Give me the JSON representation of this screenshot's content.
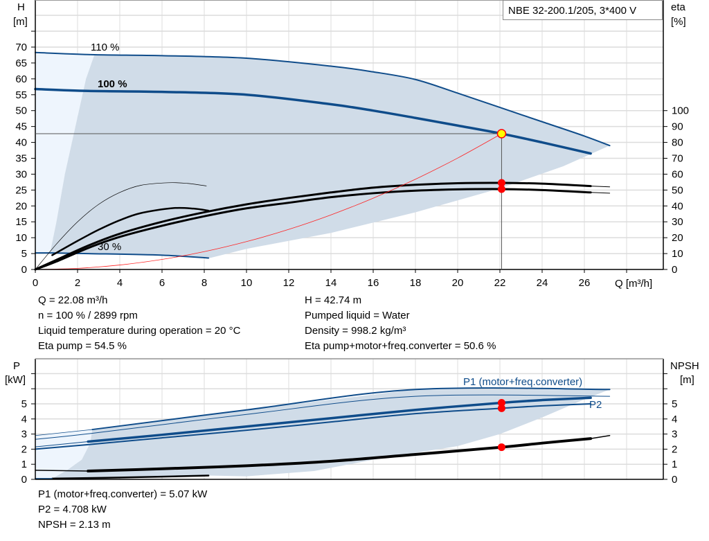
{
  "chart_data": [
    {
      "type": "line",
      "title": "NBE 32-200.1/205, 3*400 V",
      "xlabel": "Q [m³/h]",
      "ylabel": "H\n[m]",
      "y2label": "eta\n[%]",
      "xlim": [
        0,
        29.7
      ],
      "ylim": [
        0,
        85
      ],
      "y2lim": [
        0,
        170
      ],
      "xticks": [
        0,
        2,
        4,
        6,
        8,
        10,
        12,
        14,
        16,
        18,
        20,
        22,
        24,
        26
      ],
      "yticks": [
        0,
        5,
        10,
        15,
        20,
        25,
        30,
        35,
        40,
        45,
        50,
        55,
        60,
        65,
        70
      ],
      "y2ticks": [
        0,
        10,
        20,
        30,
        40,
        50,
        60,
        70,
        80,
        90,
        100
      ],
      "grid": true,
      "regions": [
        {
          "fill": "#eef5fd",
          "axis": "H",
          "points": [
            [
              0,
              68.3
            ],
            [
              2.8,
              67.6
            ],
            [
              2.4,
              60
            ],
            [
              1.9,
              45
            ],
            [
              1.4,
              30
            ],
            [
              1.0,
              15
            ],
            [
              0.7,
              5.2
            ],
            [
              0,
              5.2
            ]
          ]
        },
        {
          "fill": "#d0dce8",
          "axis": "H",
          "points": [
            [
              2.8,
              67.6
            ],
            [
              6,
              67.3
            ],
            [
              10,
              66.5
            ],
            [
              14,
              64
            ],
            [
              16,
              62.2
            ],
            [
              18,
              59.8
            ],
            [
              20,
              55.5
            ],
            [
              22,
              51
            ],
            [
              24,
              46.5
            ],
            [
              26,
              42
            ],
            [
              27.2,
              39
            ],
            [
              25,
              32.5
            ],
            [
              22,
              25.5
            ],
            [
              18,
              18
            ],
            [
              14,
              11.5
            ],
            [
              10,
              6.5
            ],
            [
              8.2,
              3.5
            ],
            [
              6,
              4.5
            ],
            [
              2.5,
              5
            ],
            [
              0.7,
              5.2
            ],
            [
              1.0,
              15
            ],
            [
              1.4,
              30
            ],
            [
              1.9,
              45
            ],
            [
              2.4,
              60
            ]
          ]
        }
      ],
      "series": [
        {
          "name": "110 %",
          "axis": "H",
          "color": "#0f4c8a",
          "width": 2,
          "points": [
            [
              0,
              68.3
            ],
            [
              2.8,
              67.6
            ],
            [
              6,
              67.3
            ],
            [
              10,
              66.5
            ],
            [
              14,
              64
            ],
            [
              16,
              62.2
            ],
            [
              18,
              59.8
            ],
            [
              20,
              55.5
            ],
            [
              22,
              51
            ],
            [
              24,
              46.5
            ],
            [
              26,
              42
            ],
            [
              27.2,
              39
            ]
          ]
        },
        {
          "name": "100 %",
          "axis": "H",
          "color": "#0f4c8a",
          "width": 3.5,
          "points": [
            [
              0,
              56.8
            ],
            [
              2.5,
              56.2
            ],
            [
              6,
              55.9
            ],
            [
              10,
              55
            ],
            [
              14,
              52
            ],
            [
              16,
              50
            ],
            [
              18,
              47.7
            ],
            [
              20,
              45.3
            ],
            [
              22.08,
              42.74
            ],
            [
              24,
              40
            ],
            [
              26.3,
              36.5
            ]
          ]
        },
        {
          "name": "30 %",
          "axis": "H",
          "color": "#0f4c8a",
          "width": 2,
          "points": [
            [
              0,
              5.2
            ],
            [
              0.8,
              5.2
            ],
            [
              2.5,
              5.0
            ],
            [
              6,
              4.5
            ],
            [
              8.2,
              3.6
            ]
          ]
        },
        {
          "axis": "eta",
          "color": "#000000",
          "width": 3,
          "points": [
            [
              0,
              0
            ],
            [
              1,
              6
            ],
            [
              2.5,
              15
            ],
            [
              4,
              22.5
            ],
            [
              6,
              30
            ],
            [
              8,
              36
            ],
            [
              10,
              41
            ],
            [
              12,
              45
            ],
            [
              14,
              48.5
            ],
            [
              16,
              51.5
            ],
            [
              18,
              53.3
            ],
            [
              20,
              54.3
            ],
            [
              22.08,
              54.5
            ],
            [
              24,
              54
            ],
            [
              26.3,
              52.5
            ]
          ]
        },
        {
          "axis": "eta",
          "color": "#000000",
          "width": 1,
          "points": [
            [
              26.3,
              52.5
            ],
            [
              27.2,
              52
            ]
          ]
        },
        {
          "axis": "eta",
          "color": "#000000",
          "width": 3,
          "points": [
            [
              0,
              0
            ],
            [
              1,
              5
            ],
            [
              2.5,
              13.5
            ],
            [
              4,
              20.5
            ],
            [
              6,
              27.5
            ],
            [
              8,
              33.5
            ],
            [
              10,
              38.5
            ],
            [
              12,
              42
            ],
            [
              14,
              45.5
            ],
            [
              16,
              48
            ],
            [
              18,
              49.6
            ],
            [
              20,
              50.4
            ],
            [
              22.08,
              50.6
            ],
            [
              24,
              50
            ],
            [
              26.3,
              48.5
            ]
          ]
        },
        {
          "axis": "eta",
          "color": "#000000",
          "width": 1,
          "points": [
            [
              26.3,
              48.5
            ],
            [
              27.2,
              48
            ]
          ]
        },
        {
          "axis": "eta",
          "color": "#000000",
          "width": 0.7,
          "points": [
            [
              0,
              0
            ],
            [
              1,
              16
            ],
            [
              2,
              30
            ],
            [
              3,
              41
            ],
            [
              4,
              48.5
            ],
            [
              5,
              53
            ],
            [
              6.3,
              54.6
            ],
            [
              7.2,
              54.2
            ],
            [
              8.1,
              52.6
            ]
          ]
        },
        {
          "axis": "eta",
          "color": "#000000",
          "width": 2.5,
          "points": [
            [
              0.8,
              9
            ],
            [
              2,
              18
            ],
            [
              3,
              25
            ],
            [
              4,
              31
            ],
            [
              5,
              35.5
            ],
            [
              6.5,
              38.6
            ],
            [
              7.5,
              38.3
            ],
            [
              8.2,
              37
            ]
          ]
        },
        {
          "name": "system",
          "axis": "H",
          "color": "#ff2020",
          "width": 0.8,
          "points": [
            [
              0,
              0
            ],
            [
              2,
              0.35
            ],
            [
              4,
              1.4
            ],
            [
              6,
              3.16
            ],
            [
              8,
              5.61
            ],
            [
              10,
              8.77
            ],
            [
              12,
              12.62
            ],
            [
              14,
              17.18
            ],
            [
              16,
              22.44
            ],
            [
              18,
              28.4
            ],
            [
              20,
              35.07
            ],
            [
              22.08,
              42.74
            ]
          ]
        }
      ],
      "operating_point": {
        "Q": 22.08,
        "H": 42.74,
        "eta_pump": 54.5,
        "eta_total": 50.6
      }
    },
    {
      "type": "line",
      "xlim": [
        0,
        29.7
      ],
      "ylabel": "P\n[kW]",
      "y2label": "NPSH\n[m]",
      "ylim": [
        0,
        8
      ],
      "yticks": [
        0,
        1,
        2,
        3,
        4,
        5
      ],
      "y2ticks": [
        0,
        1,
        2,
        3,
        4,
        5
      ],
      "grid": true,
      "regions": [
        {
          "fill": "#eef5fd",
          "points": [
            [
              0,
              2.9
            ],
            [
              2.7,
              3.3
            ],
            [
              2.6,
              2.4
            ],
            [
              2.2,
              1.3
            ],
            [
              1.5,
              0.6
            ],
            [
              0.8,
              0.05
            ],
            [
              0,
              0.05
            ]
          ]
        },
        {
          "fill": "#d0dce8",
          "points": [
            [
              2.7,
              3.3
            ],
            [
              10,
              4.6
            ],
            [
              18,
              5.95
            ],
            [
              27.2,
              5.95
            ],
            [
              26,
              5.3
            ],
            [
              24,
              4.1
            ],
            [
              22,
              3
            ],
            [
              20,
              2.2
            ],
            [
              16,
              1.3
            ],
            [
              13.2,
              0.55
            ],
            [
              10,
              0.2
            ],
            [
              8.2,
              0.25
            ],
            [
              0.8,
              0.05
            ],
            [
              1.5,
              0.6
            ],
            [
              2.2,
              1.3
            ],
            [
              2.6,
              2.4
            ]
          ]
        }
      ],
      "series": [
        {
          "axis": "P",
          "color": "#0f4c8a",
          "width": 2,
          "points": [
            [
              2.7,
              3.3
            ],
            [
              10,
              4.6
            ],
            [
              18,
              5.95
            ],
            [
              27.2,
              5.95
            ]
          ]
        },
        {
          "axis": "P",
          "color": "#0f4c8a",
          "width": 0.8,
          "points": [
            [
              0,
              2.9
            ],
            [
              2.7,
              3.3
            ]
          ]
        },
        {
          "axis": "P",
          "color": "#0f4c8a",
          "width": 1,
          "points": [
            [
              0,
              2.65
            ],
            [
              2.7,
              3.05
            ],
            [
              10,
              4.3
            ],
            [
              18,
              5.5
            ],
            [
              27.2,
              5.5
            ]
          ]
        },
        {
          "name": "P1 (motor+freq.converter)",
          "axis": "P",
          "color": "#0f4c8a",
          "width": 3.5,
          "points": [
            [
              2.5,
              2.5
            ],
            [
              6,
              2.95
            ],
            [
              10,
              3.5
            ],
            [
              14,
              4.05
            ],
            [
              18,
              4.6
            ],
            [
              22.08,
              5.07
            ],
            [
              24,
              5.25
            ],
            [
              26.3,
              5.4
            ]
          ]
        },
        {
          "axis": "P",
          "color": "#0f4c8a",
          "width": 1,
          "points": [
            [
              0,
              2.15
            ],
            [
              2.5,
              2.5
            ]
          ]
        },
        {
          "name": "P2",
          "axis": "P",
          "color": "#0f4c8a",
          "width": 2,
          "points": [
            [
              0,
              2.0
            ],
            [
              2.5,
              2.3
            ],
            [
              6,
              2.75
            ],
            [
              10,
              3.25
            ],
            [
              14,
              3.8
            ],
            [
              18,
              4.35
            ],
            [
              22.08,
              4.708
            ],
            [
              24,
              4.87
            ],
            [
              26.3,
              5.0
            ]
          ]
        },
        {
          "name": "NPSH",
          "axis": "NPSH",
          "color": "#000000",
          "width": 4,
          "points": [
            [
              2.5,
              0.55
            ],
            [
              6,
              0.7
            ],
            [
              10,
              0.9
            ],
            [
              14,
              1.2
            ],
            [
              18,
              1.65
            ],
            [
              22.08,
              2.13
            ],
            [
              24,
              2.4
            ],
            [
              26.3,
              2.7
            ]
          ]
        },
        {
          "axis": "NPSH",
          "color": "#000000",
          "width": 1.5,
          "points": [
            [
              0,
              0.6
            ],
            [
              2.5,
              0.55
            ]
          ]
        },
        {
          "axis": "NPSH",
          "color": "#000000",
          "width": 1.5,
          "points": [
            [
              26.3,
              2.7
            ],
            [
              27.2,
              2.9
            ]
          ]
        },
        {
          "axis": "NPSH",
          "color": "#000000",
          "width": 2.5,
          "points": [
            [
              0.8,
              0.05
            ],
            [
              4,
              0.12
            ],
            [
              8.2,
              0.25
            ]
          ]
        },
        {
          "axis": "P",
          "color": "#0f4c8a",
          "width": 1.5,
          "points": [
            [
              0,
              0.05
            ],
            [
              0.8,
              0.05
            ]
          ]
        }
      ],
      "operating_point": {
        "Q": 22.08,
        "P1": 5.07,
        "P2": 4.708,
        "NPSH": 2.13
      }
    }
  ],
  "labels": {
    "title": "NBE 32-200.1/205, 3*400 V",
    "h_axis": "H",
    "h_unit": "[m]",
    "eta_axis": "eta",
    "eta_unit": "[%]",
    "q_axis": "Q [m³/h]",
    "curve_110": "110 %",
    "curve_100": "100 %",
    "curve_30": "30 %",
    "p_axis": "P",
    "p_unit": "[kW]",
    "npsh_axis": "NPSH",
    "npsh_unit": "[m]",
    "p1_label": "P1 (motor+freq.converter)",
    "p2_label": "P2"
  },
  "info": {
    "q": "Q = 22.08 m³/h",
    "n": "n = 100 % / 2899 rpm",
    "temp": "Liquid temperature during operation = 20 °C",
    "eta_pump": "Eta pump = 54.5 %",
    "h": "H = 42.74 m",
    "liquid": "Pumped liquid = Water",
    "density": "Density = 998.2 kg/m³",
    "eta_total": "Eta pump+motor+freq.converter = 50.6 %",
    "p1": "P1 (motor+freq.converter) = 5.07 kW",
    "p2": "P2 = 4.708 kW",
    "npsh": "NPSH = 2.13 m"
  },
  "colors": {
    "curve_blue": "#0f4c8a",
    "area": "#d0dce8",
    "area_light": "#eef5fd",
    "marker": "#ff0000",
    "duty_point": "#ffff00",
    "grid": "#dcdcdc"
  }
}
